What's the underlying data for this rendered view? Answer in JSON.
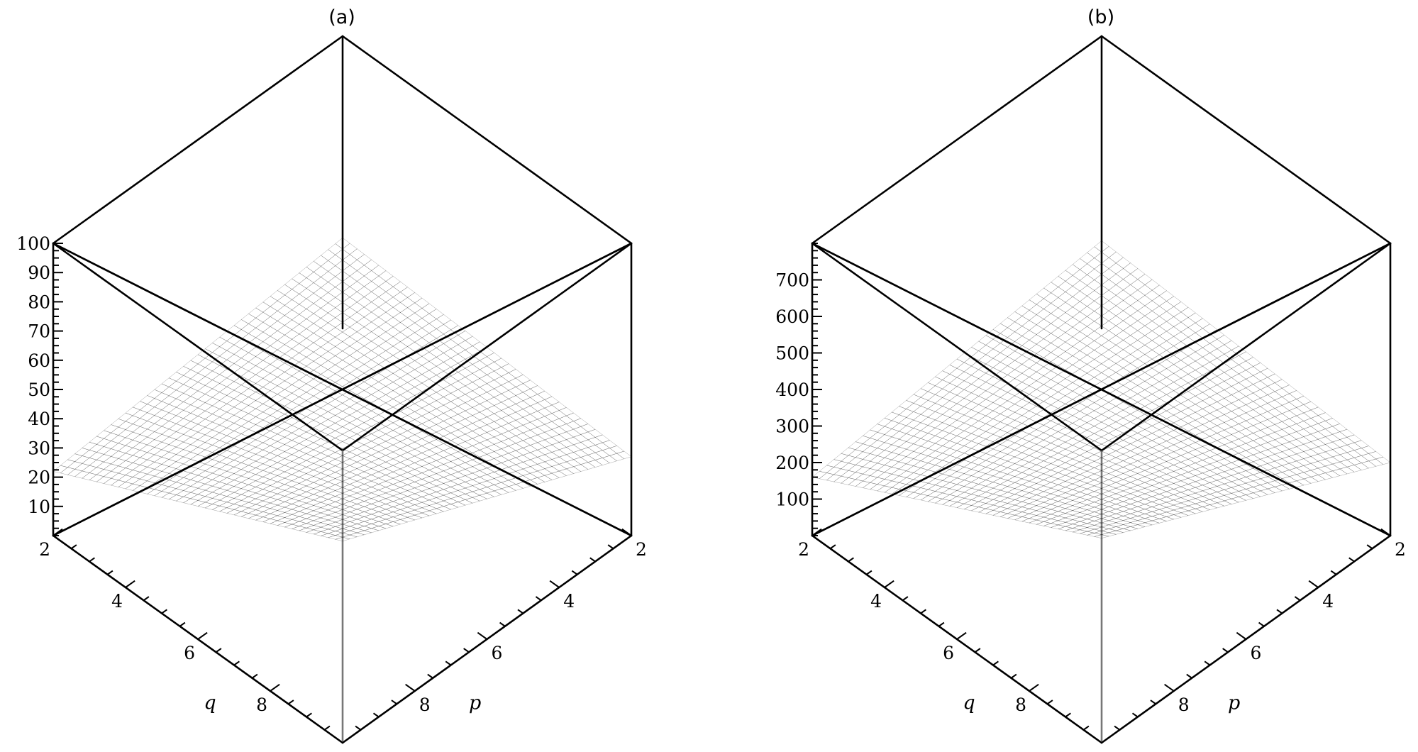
{
  "chart_data": [
    {
      "type": "surface3d",
      "title": "(a)",
      "xlabel": "q",
      "ylabel": "p",
      "x_range": [
        2,
        10
      ],
      "y_range": [
        2,
        10
      ],
      "zlim": [
        0,
        100
      ],
      "x_ticks": [
        2,
        4,
        6,
        8
      ],
      "y_ticks": [
        2,
        4,
        6,
        8
      ],
      "z_ticks": [
        10,
        20,
        30,
        40,
        50,
        60,
        70,
        80,
        90,
        100
      ],
      "corner_values": {
        "q2_p2": 31,
        "q10_p2": 27,
        "q2_p10": 22,
        "q10_p10": 69
      },
      "colormap": [
        "#ec9ed6",
        "#9a9fd0",
        "#56c9b2"
      ],
      "mesh": true
    },
    {
      "type": "surface3d",
      "title": "(b)",
      "xlabel": "q",
      "ylabel": "p",
      "x_range": [
        2,
        10
      ],
      "y_range": [
        2,
        10
      ],
      "zlim": [
        0,
        800
      ],
      "x_ticks": [
        2,
        4,
        6,
        8
      ],
      "y_ticks": [
        2,
        4,
        6,
        8
      ],
      "z_ticks": [
        100,
        200,
        300,
        400,
        500,
        600,
        700
      ],
      "corner_values": {
        "q2_p2": 240,
        "q10_p2": 200,
        "q2_p10": 160,
        "q10_p10": 560
      },
      "colormap": [
        "#9b0f1c",
        "#7a0712",
        "#300004"
      ],
      "mesh": true
    }
  ]
}
